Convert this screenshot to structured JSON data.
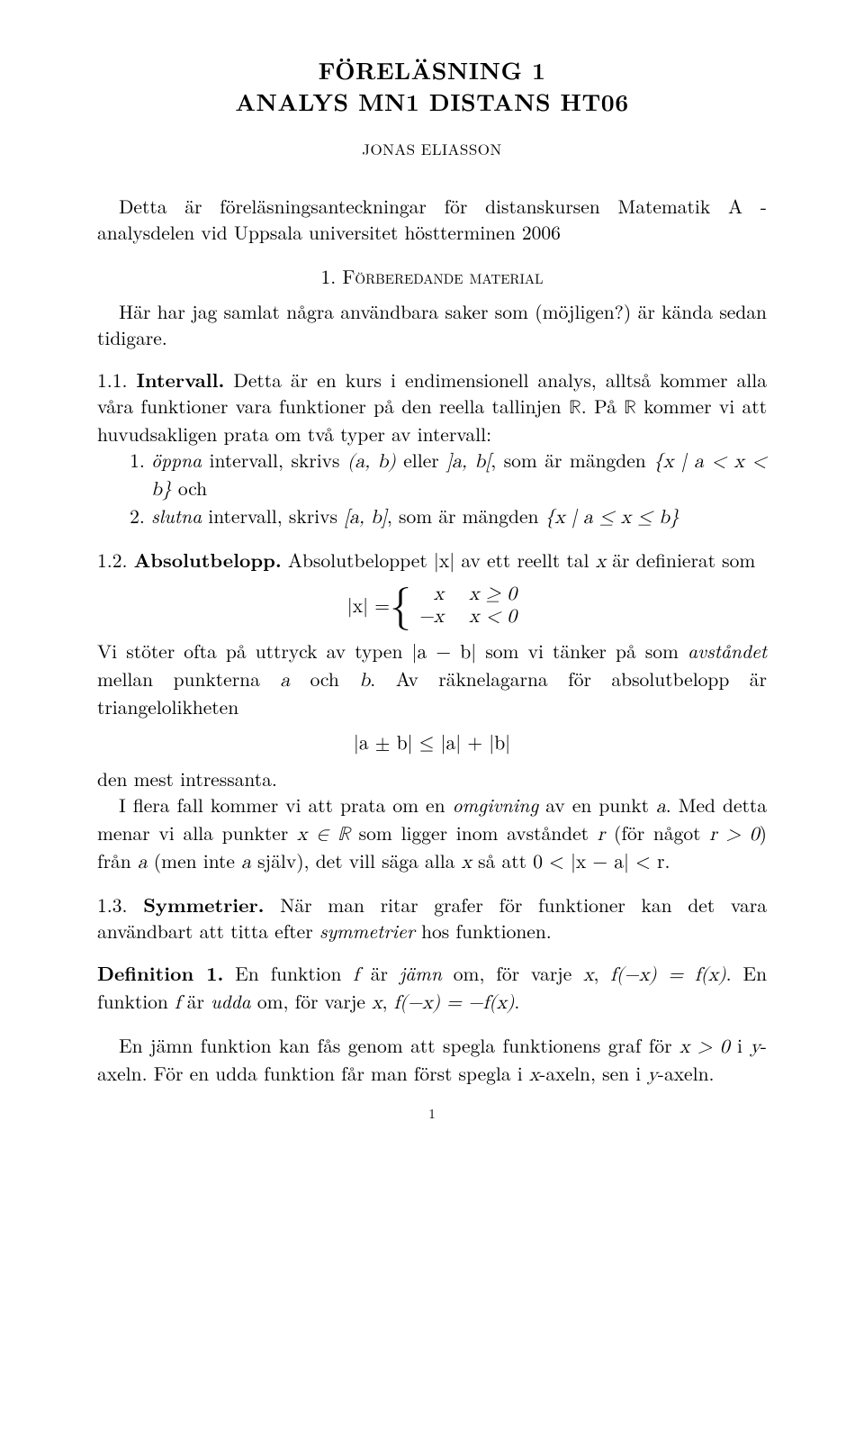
{
  "title": {
    "line1": "FÖRELÄSNING 1",
    "line2": "ANALYS MN1 DISTANS HT06"
  },
  "author": "JONAS ELIASSON",
  "intro": "Detta är föreläsningsanteckningar för distanskursen Matematik A - analysdelen vid Uppsala universitet höstterminen 2006",
  "section1": {
    "heading": "1. Förberedande material",
    "lead": "Här har jag samlat några användbara saker som (möjligen?) är kända sedan tidigare.",
    "s11": {
      "label": "1.1. Intervall.",
      "body_a": " Detta är en kurs i endimensionell analys, alltså kommer alla våra funktioner vara funktioner på den reella tallinjen ",
      "R": "ℝ",
      "body_b": ". På ",
      "body_c": " kommer vi att huvudsakligen prata om två typer av intervall:",
      "item1_a": "öppna",
      "item1_b": " intervall, skrivs ",
      "item1_c": "(a, b)",
      "item1_d": " eller ",
      "item1_e": "]a, b[",
      "item1_f": ", som är mängden ",
      "item1_g": "{x | a < x < b}",
      "item1_h": " och",
      "item2_a": "slutna",
      "item2_b": " intervall, skrivs ",
      "item2_c": "[a, b]",
      "item2_d": ", som är mängden ",
      "item2_e": "{x | a ≤ x ≤ b}"
    },
    "s12": {
      "label": "1.2. Absolutbelopp.",
      "a": " Absolutbeloppet ",
      "abs_x": "|x|",
      "b": " av ett reellt tal ",
      "x": "x",
      "c": " är definierat som",
      "eq_lhs": "|x| = ",
      "eq_r1c1": "x",
      "eq_r1c2": "x ≥ 0",
      "eq_r2c1": "−x",
      "eq_r2c2": "x < 0",
      "p2_a": "Vi stöter ofta på uttryck av typen ",
      "p2_b": "|a − b|",
      "p2_c": " som vi tänker på som ",
      "p2_d": "avståndet",
      "p2_e": " mellan punkterna ",
      "p2_f": "a",
      "p2_g": " och ",
      "p2_h": "b",
      "p2_i": ". Av räknelagarna för absolutbelopp är triangelolikheten",
      "tri": "|a ± b| ≤ |a| + |b|",
      "p3": "den mest intressanta.",
      "p4_a": "I flera fall kommer vi att prata om en ",
      "p4_b": "omgivning",
      "p4_c": " av en punkt ",
      "p4_d": "a",
      "p4_e": ". Med detta menar vi alla punkter ",
      "p4_f": "x ∈ ℝ",
      "p4_g": " som ligger inom avståndet ",
      "p4_h": "r",
      "p4_i": " (för något ",
      "p4_j": "r > 0",
      "p4_k": ") från ",
      "p4_l": "a",
      "p4_m": " (men inte ",
      "p4_n": "a",
      "p4_o": " själv), det vill säga alla ",
      "p4_p": "x",
      "p4_q": " så att ",
      "p4_r": "0 < |x − a| < r",
      "p4_s": "."
    },
    "s13": {
      "label": "1.3. Symmetrier.",
      "a": " När man ritar grafer för funktioner kan det vara användbart att titta efter ",
      "b": "symmetrier",
      "c": " hos funktionen."
    },
    "def1": {
      "label": "Definition 1.",
      "a": " En funktion ",
      "f": "f",
      "b": " är ",
      "even": "jämn",
      "c": " om, för varje ",
      "x": "x",
      "d": ", ",
      "eq1": "f(−x) = f(x)",
      "e": ". En funktion ",
      "g": " är ",
      "odd": "udda",
      "h": " om, för varje ",
      "i": ", ",
      "eq2": "f(−x) = −f(x)",
      "j": "."
    },
    "trail": {
      "a": "En jämn funktion kan fås genom att spegla funktionens graf för ",
      "b": "x > 0",
      "c": " i ",
      "d": "y",
      "e": "-axeln. För en udda funktion får man först spegla i ",
      "f": "x",
      "g": "-axeln, sen i ",
      "h": "y",
      "i": "-axeln."
    }
  },
  "page_number": "1"
}
